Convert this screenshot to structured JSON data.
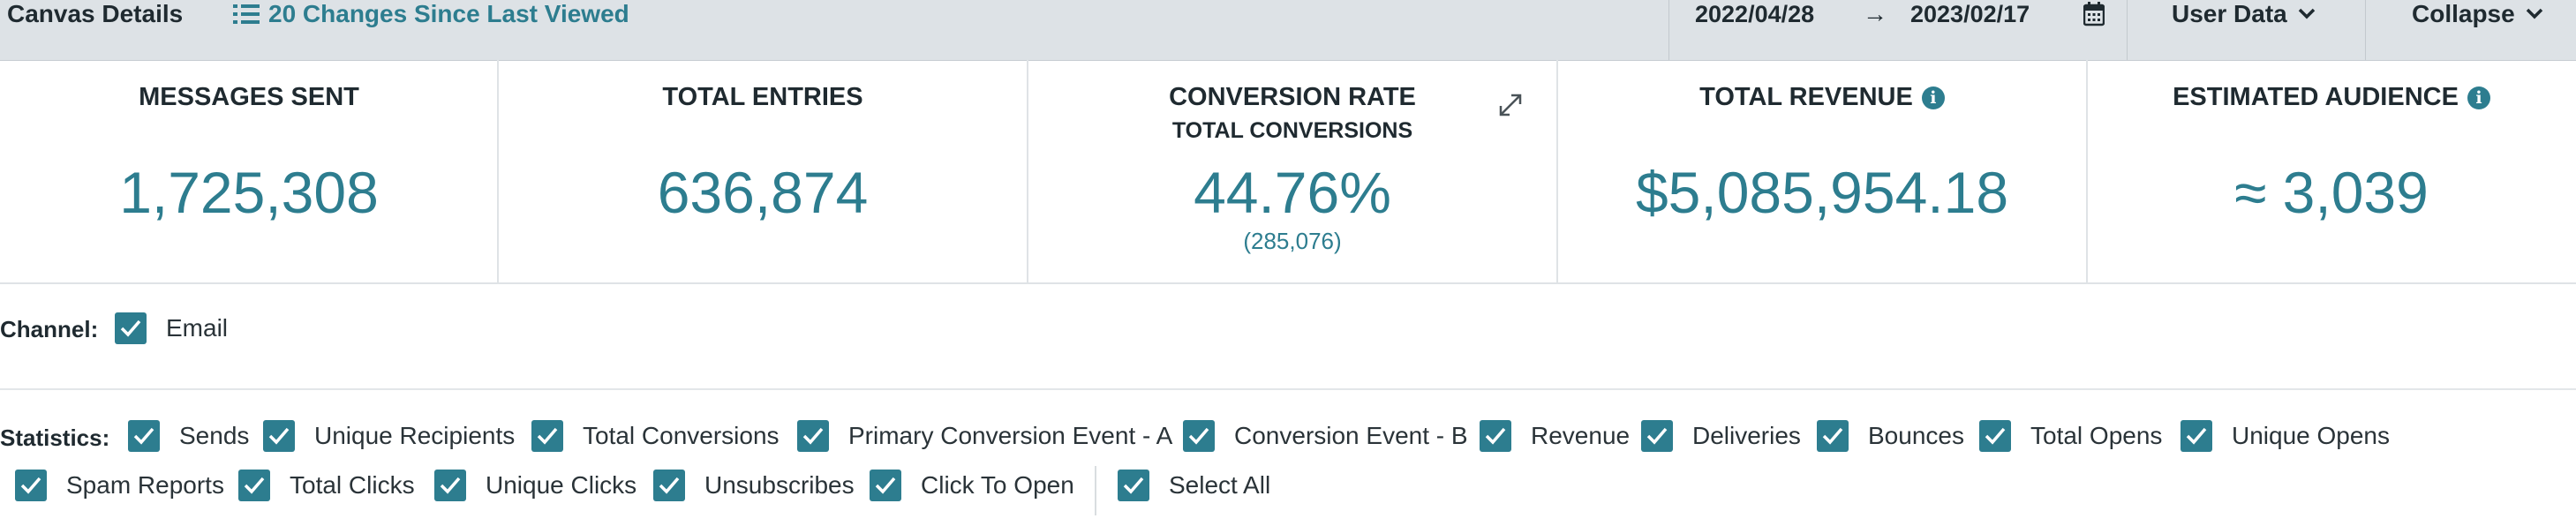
{
  "topbar": {
    "title": "Canvas Details",
    "changes_label": "20 Changes Since Last Viewed",
    "date_start": "2022/04/28",
    "arrow": "→",
    "date_end": "2023/02/17",
    "user_data_label": "User Data",
    "collapse_label": "Collapse"
  },
  "stats": {
    "messages_sent": {
      "label": "MESSAGES SENT",
      "value": "1,725,308"
    },
    "total_entries": {
      "label": "TOTAL ENTRIES",
      "value": "636,874"
    },
    "conversion_rate": {
      "label": "CONVERSION RATE",
      "sublabel": "TOTAL CONVERSIONS",
      "value": "44.76%",
      "subvalue": "(285,076)"
    },
    "total_revenue": {
      "label": "TOTAL REVENUE",
      "value": "$5,085,954.18"
    },
    "estimated_audience": {
      "label": "ESTIMATED AUDIENCE",
      "value": "≈ 3,039"
    }
  },
  "channel": {
    "label": "Channel:",
    "options": [
      "Email"
    ]
  },
  "statistics": {
    "label": "Statistics:",
    "options": [
      "Sends",
      "Unique Recipients",
      "Total Conversions",
      "Primary Conversion Event - A",
      "Conversion Event - B",
      "Revenue",
      "Deliveries",
      "Bounces",
      "Total Opens",
      "Unique Opens",
      "Spam Reports",
      "Total Clicks",
      "Unique Clicks",
      "Unsubscribes",
      "Click To Open",
      "Select All"
    ]
  },
  "colors": {
    "accent": "#2d7d8f",
    "topbar_bg": "#dde2e6",
    "text": "#1f2a30"
  }
}
